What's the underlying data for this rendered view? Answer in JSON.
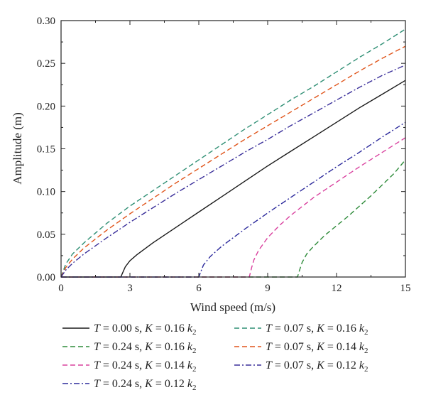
{
  "chart_data": {
    "type": "line",
    "xlabel": "Wind speed (m/s)",
    "ylabel": "Amplitude (m)",
    "xlim": [
      0,
      15
    ],
    "ylim": [
      0,
      0.3
    ],
    "xticks": [
      "0",
      "3",
      "6",
      "9",
      "12",
      "15"
    ],
    "yticks": [
      "0.00",
      "0.05",
      "0.10",
      "0.15",
      "0.20",
      "0.25",
      "0.30"
    ],
    "grid": false,
    "legend_position": "bottom",
    "series": [
      {
        "name": "T = 0.00 s, K = 0.16 k2",
        "T": "0.00",
        "K": "0.16",
        "color": "#1a1a1a",
        "dash": "solid",
        "x": [
          0,
          2.6,
          2.7,
          2.8,
          3.0,
          3.3,
          4.0,
          5.0,
          6.0,
          7.0,
          8.0,
          9.0,
          10.0,
          11.0,
          12.0,
          13.0,
          14.0,
          15.0
        ],
        "y": [
          0,
          0,
          0.006,
          0.012,
          0.019,
          0.026,
          0.04,
          0.058,
          0.076,
          0.094,
          0.112,
          0.13,
          0.147,
          0.164,
          0.181,
          0.198,
          0.214,
          0.23
        ]
      },
      {
        "name": "T = 0.24 s, K = 0.16 k2",
        "T": "0.24",
        "K": "0.16",
        "color": "#2e8b3a",
        "dash": "dashed",
        "x": [
          0,
          10.3,
          10.4,
          10.5,
          10.7,
          11.0,
          11.5,
          12.0,
          12.5,
          13.0,
          13.5,
          14.0,
          14.5,
          15.0
        ],
        "y": [
          0,
          0,
          0.009,
          0.017,
          0.027,
          0.036,
          0.049,
          0.06,
          0.071,
          0.083,
          0.095,
          0.108,
          0.121,
          0.137
        ]
      },
      {
        "name": "T = 0.24 s, K = 0.14 k2",
        "T": "0.24",
        "K": "0.14",
        "color": "#d9409e",
        "dash": "dashed",
        "x": [
          0,
          8.2,
          8.3,
          8.4,
          8.6,
          9.0,
          9.5,
          10.0,
          11.0,
          12.0,
          13.0,
          14.0,
          15.0
        ],
        "y": [
          0,
          0,
          0.011,
          0.02,
          0.031,
          0.046,
          0.06,
          0.072,
          0.093,
          0.111,
          0.129,
          0.146,
          0.163
        ]
      },
      {
        "name": "T = 0.24 s, K = 0.12 k2",
        "T": "0.24",
        "K": "0.12",
        "color": "#2c2a9c",
        "dash": "dashdot",
        "x": [
          0,
          6.0,
          6.1,
          6.2,
          6.5,
          7.0,
          8.0,
          9.0,
          10.0,
          11.0,
          12.0,
          13.0,
          14.0,
          15.0
        ],
        "y": [
          0,
          0,
          0.007,
          0.014,
          0.024,
          0.036,
          0.056,
          0.075,
          0.093,
          0.111,
          0.129,
          0.146,
          0.164,
          0.181
        ]
      },
      {
        "name": "T = 0.07 s, K = 0.16 k2",
        "T": "0.07",
        "K": "0.16",
        "color": "#2f8f74",
        "dash": "dashed",
        "x": [
          0,
          0.2,
          0.5,
          1.0,
          2.0,
          3.0,
          4.0,
          5.0,
          6.0,
          7.0,
          8.0,
          9.0,
          10.0,
          11.0,
          12.0,
          13.0,
          14.0,
          15.0
        ],
        "y": [
          0,
          0.015,
          0.027,
          0.04,
          0.063,
          0.083,
          0.101,
          0.119,
          0.137,
          0.155,
          0.173,
          0.19,
          0.207,
          0.223,
          0.24,
          0.257,
          0.273,
          0.29
        ]
      },
      {
        "name": "T = 0.07 s, K = 0.14 k2",
        "T": "0.07",
        "K": "0.14",
        "color": "#e0541a",
        "dash": "dashed",
        "x": [
          0,
          0.2,
          0.5,
          1.0,
          2.0,
          3.0,
          4.0,
          5.0,
          6.0,
          7.0,
          8.0,
          9.0,
          10.0,
          11.0,
          12.0,
          13.0,
          14.0,
          15.0
        ],
        "y": [
          0,
          0.011,
          0.021,
          0.034,
          0.055,
          0.074,
          0.092,
          0.11,
          0.127,
          0.144,
          0.161,
          0.177,
          0.193,
          0.209,
          0.225,
          0.241,
          0.256,
          0.27
        ]
      },
      {
        "name": "T = 0.07 s, K = 0.12 k2",
        "T": "0.07",
        "K": "0.12",
        "color": "#3a2f9a",
        "dash": "dashdot",
        "x": [
          0,
          0.2,
          0.5,
          1.0,
          2.0,
          3.0,
          4.0,
          5.0,
          6.0,
          7.0,
          8.0,
          9.0,
          10.0,
          11.0,
          12.0,
          13.0,
          14.0,
          15.0
        ],
        "y": [
          0,
          0.008,
          0.016,
          0.027,
          0.046,
          0.064,
          0.081,
          0.098,
          0.114,
          0.13,
          0.146,
          0.161,
          0.177,
          0.192,
          0.207,
          0.222,
          0.236,
          0.248
        ]
      }
    ],
    "legend_order": [
      0,
      4,
      1,
      5,
      2,
      6,
      3
    ]
  }
}
